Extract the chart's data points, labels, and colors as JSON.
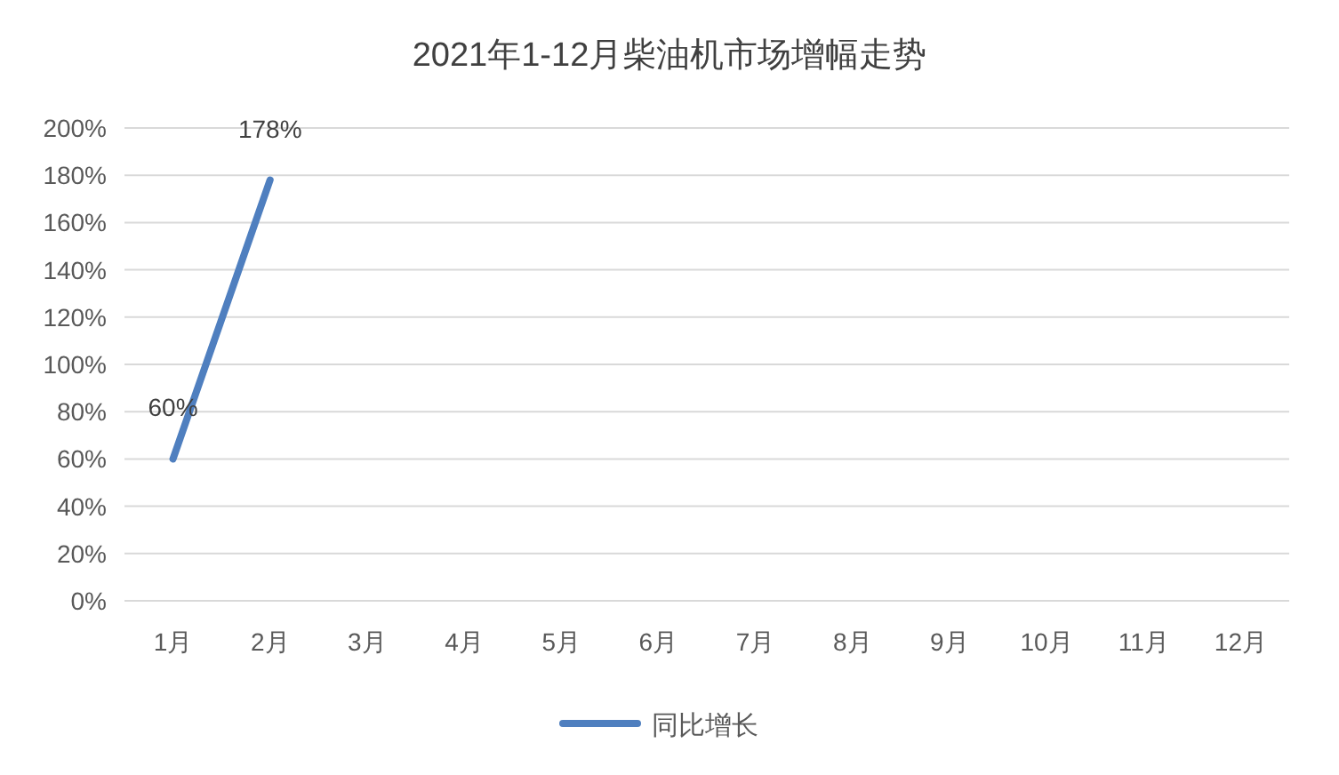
{
  "chart_data": {
    "type": "line",
    "title": "2021年1-12月柴油机市场增幅走势",
    "categories": [
      "1月",
      "2月",
      "3月",
      "4月",
      "5月",
      "6月",
      "7月",
      "8月",
      "9月",
      "10月",
      "11月",
      "12月"
    ],
    "series": [
      {
        "name": "同比增长",
        "color": "#4f7fbf",
        "values": [
          60,
          178,
          null,
          null,
          null,
          null,
          null,
          null,
          null,
          null,
          null,
          null
        ],
        "value_labels": [
          "60%",
          "178%",
          null,
          null,
          null,
          null,
          null,
          null,
          null,
          null,
          null,
          null
        ]
      }
    ],
    "ylim": [
      0,
      200
    ],
    "yticks": [
      {
        "value": 0,
        "label": "0%"
      },
      {
        "value": 20,
        "label": "20%"
      },
      {
        "value": 40,
        "label": "40%"
      },
      {
        "value": 60,
        "label": "60%"
      },
      {
        "value": 80,
        "label": "80%"
      },
      {
        "value": 100,
        "label": "100%"
      },
      {
        "value": 120,
        "label": "120%"
      },
      {
        "value": 140,
        "label": "140%"
      },
      {
        "value": 160,
        "label": "160%"
      },
      {
        "value": 180,
        "label": "180%"
      },
      {
        "value": 200,
        "label": "200%"
      }
    ],
    "grid": "y",
    "legend": "bottom",
    "marker": "none",
    "line_style": "solid"
  }
}
